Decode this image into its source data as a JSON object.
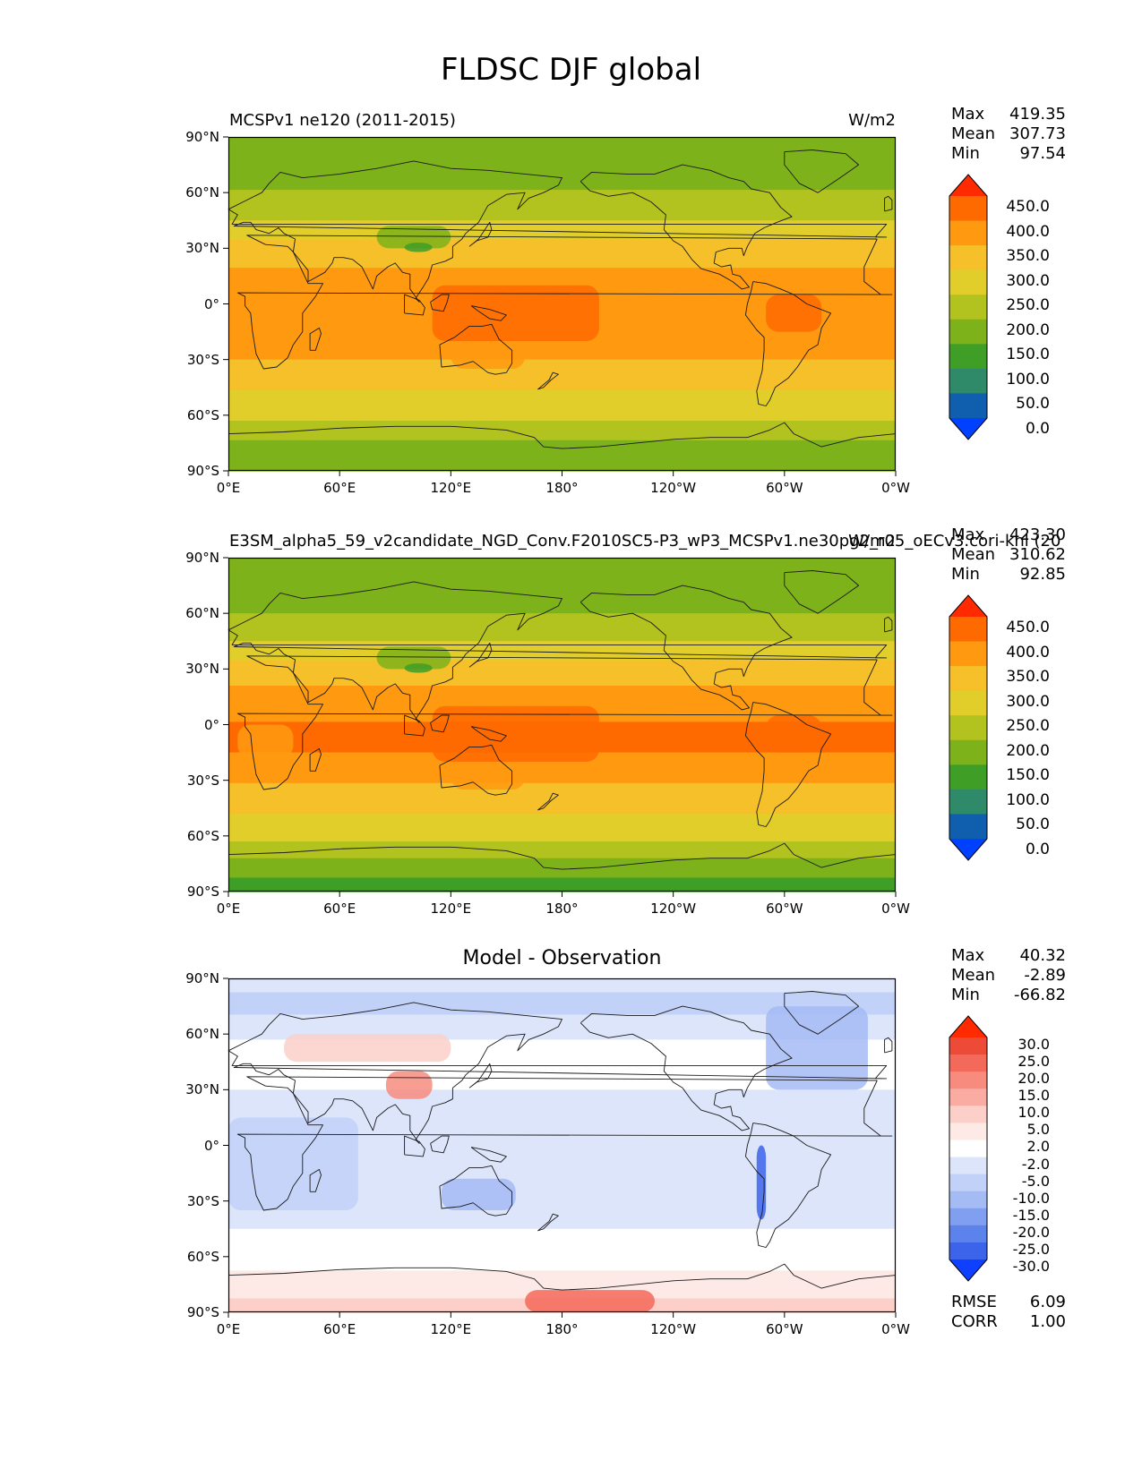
{
  "figure": {
    "title": "FLDSC DJF global"
  },
  "panels": [
    {
      "left_title": "MCSPv1 ne120 (2011-2015)",
      "right_title": "W/m2",
      "center_title": "",
      "stats": [
        {
          "label": "Max",
          "value": "419.35"
        },
        {
          "label": "Mean",
          "value": "307.73"
        },
        {
          "label": "Min",
          "value": "97.54"
        }
      ]
    },
    {
      "left_title": "E3SM_alpha5_59_v2candidate_NGD_Conv.F2010SC5-P3_wP3_MCSPv1.ne30pg2_r05_oECv3.cori-knl (20",
      "right_title": "W/m2",
      "center_title": "",
      "stats": [
        {
          "label": "Max",
          "value": "423.30"
        },
        {
          "label": "Mean",
          "value": "310.62"
        },
        {
          "label": "Min",
          "value": "92.85"
        }
      ]
    },
    {
      "left_title": "",
      "right_title": "",
      "center_title": "Model - Observation",
      "stats": [
        {
          "label": "Max",
          "value": "40.32"
        },
        {
          "label": "Mean",
          "value": "-2.89"
        },
        {
          "label": "Min",
          "value": "-66.82"
        }
      ],
      "metrics": [
        {
          "label": "RMSE",
          "value": "6.09"
        },
        {
          "label": "CORR",
          "value": "1.00"
        }
      ]
    }
  ],
  "axes": {
    "lat_ticks": [
      "90°N",
      "60°N",
      "30°N",
      "0°",
      "30°S",
      "60°S",
      "90°S"
    ],
    "lon_ticks": [
      "0°E",
      "60°E",
      "120°E",
      "180°",
      "120°W",
      "60°W",
      "0°W"
    ]
  },
  "colorbars": {
    "abs": {
      "labels": [
        "450.0",
        "400.0",
        "350.0",
        "300.0",
        "250.0",
        "200.0",
        "150.0",
        "100.0",
        "50.0",
        "0.0"
      ],
      "colors": [
        "#ff2a00",
        "#ff6a00",
        "#ff9a10",
        "#f5c02a",
        "#e2ce2a",
        "#b2c21e",
        "#7db21a",
        "#3e9e26",
        "#2f8a6a",
        "#0f5fae",
        "#0040ff"
      ]
    },
    "diff": {
      "labels": [
        "30.0",
        "25.0",
        "20.0",
        "15.0",
        "10.0",
        "5.0",
        "2.0",
        "-2.0",
        "-5.0",
        "-10.0",
        "-15.0",
        "-20.0",
        "-25.0",
        "-30.0"
      ],
      "colors": [
        "#ff2a00",
        "#ee4a38",
        "#f3695a",
        "#f78c7e",
        "#faaca2",
        "#fcd0c9",
        "#fde9e5",
        "#ffffff",
        "#dde5fb",
        "#c2d1f8",
        "#a4bbf4",
        "#819ff0",
        "#5c82ec",
        "#3c64ea",
        "#1040ff"
      ]
    }
  },
  "chart_data": [
    {
      "type": "heatmap",
      "title": "FLDSC DJF global",
      "left_title": "MCSPv1 ne120 (2011-2015)",
      "units": "W/m2",
      "xlim": [
        0,
        360
      ],
      "ylim": [
        -90,
        90
      ],
      "x_tick_labels": [
        "0°E",
        "60°E",
        "120°E",
        "180°",
        "120°W",
        "60°W",
        "0°W"
      ],
      "y_tick_labels": [
        "90°N",
        "60°N",
        "30°N",
        "0°",
        "30°S",
        "60°S",
        "90°S"
      ],
      "levels": [
        0,
        50,
        100,
        150,
        200,
        250,
        300,
        350,
        400,
        450
      ],
      "zonal_profile": {
        "lat": [
          90,
          75,
          60,
          45,
          30,
          15,
          0,
          -15,
          -30,
          -45,
          -60,
          -75,
          -90
        ],
        "value": [
          155,
          165,
          205,
          250,
          320,
          365,
          400,
          395,
          350,
          305,
          265,
          195,
          150
        ]
      },
      "stats": {
        "max": 419.35,
        "mean": 307.73,
        "min": 97.54
      }
    },
    {
      "type": "heatmap",
      "left_title": "E3SM_alpha5_59_v2candidate_NGD_Conv.F2010SC5-P3_wP3_MCSPv1.ne30pg2_r05_oECv3.cori-knl (20",
      "units": "W/m2",
      "xlim": [
        0,
        360
      ],
      "ylim": [
        -90,
        90
      ],
      "levels": [
        0,
        50,
        100,
        150,
        200,
        250,
        300,
        350,
        400,
        450
      ],
      "zonal_profile": {
        "lat": [
          90,
          75,
          60,
          45,
          30,
          15,
          0,
          -15,
          -30,
          -45,
          -60,
          -75,
          -90
        ],
        "value": [
          150,
          160,
          200,
          248,
          322,
          370,
          405,
          400,
          355,
          310,
          262,
          185,
          120
        ]
      },
      "stats": {
        "max": 423.3,
        "mean": 310.62,
        "min": 92.85
      }
    },
    {
      "type": "heatmap",
      "title": "Model - Observation",
      "xlim": [
        0,
        360
      ],
      "ylim": [
        -90,
        90
      ],
      "levels": [
        -30,
        -25,
        -20,
        -15,
        -10,
        -5,
        -2,
        2,
        5,
        10,
        15,
        20,
        25,
        30
      ],
      "zonal_profile": {
        "lat": [
          90,
          75,
          60,
          45,
          30,
          15,
          0,
          -15,
          -30,
          -45,
          -60,
          -75,
          -90
        ],
        "value": [
          -4,
          -6,
          -3,
          1,
          -2,
          -4,
          -5,
          -4,
          -5,
          -2,
          0,
          4,
          6
        ]
      },
      "stats": {
        "max": 40.32,
        "mean": -2.89,
        "min": -66.82,
        "rmse": 6.09,
        "corr": 1.0
      }
    }
  ]
}
